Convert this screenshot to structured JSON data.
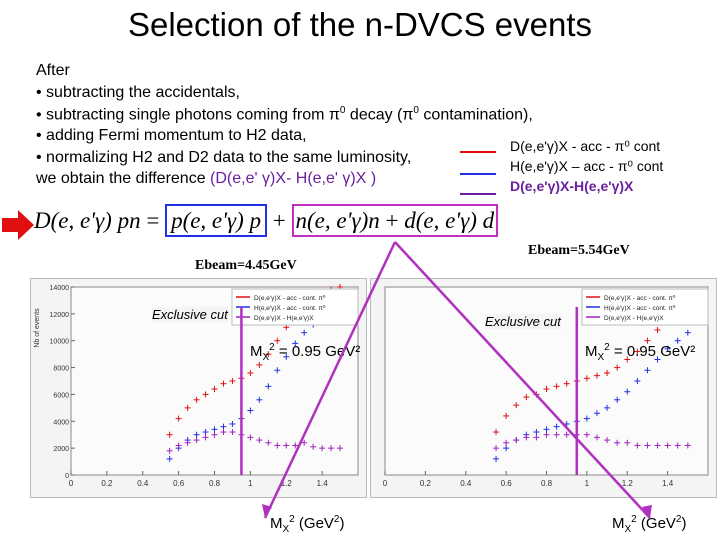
{
  "title": "Selection of the n-DVCS events",
  "body": {
    "after": "After",
    "bullet1": "• subtracting the accidentals,",
    "bullet2a": "• subtracting single photons coming from π",
    "bullet2b": "0",
    "bullet2c": " decay (π",
    "bullet2d": "0",
    "bullet2e": " contamination),",
    "bullet3": "• adding Fermi momentum to H2 data,",
    "bullet4": "• normalizing H2 and D2 data to the same luminosity,",
    "obtain": "we obtain the difference ",
    "obtain_highlight": "(D(e,e' γ)X- H(e,e' γ)X )"
  },
  "legend": {
    "item1": "D(e,e'γ)X - acc - π⁰ cont",
    "item2": "H(e,e'γ)X – acc - π⁰ cont",
    "item3": "D(e,e'γ)X-H(e,e'γ)X"
  },
  "formula": {
    "lhs": "D(e, e'γ) pn",
    "eq": " = ",
    "term1": "p(e, e'γ) p",
    "plus1": " + ",
    "term2": "n(e, e'γ)n",
    "plus2": " + ",
    "term3": "d(e, e'γ) d"
  },
  "plots": {
    "left": {
      "ebeam": "Ebeam=4.45GeV",
      "exclusive_cut": "Exclusive cut",
      "mx_label": "MX2 = 0.95 GeV²",
      "axis_title": "MX2 (GeV2)",
      "ylabel": "Nb of events",
      "legend1": "D(e,e'γ)X - acc - cont. π⁰",
      "legend2": "H(e,e'γ)X - acc - cont. π⁰",
      "legend3": "D(e,e'γ)X - H(e,e'γ)X"
    },
    "right": {
      "ebeam": "Ebeam=5.54GeV",
      "exclusive_cut": "Exclusive cut",
      "mx_label": "MX2 = 0.95 GeV²",
      "axis_title": "MX2 (GeV2)",
      "legend1": "D(e,e'γ)X - acc - cont. π⁰",
      "legend2": "H(e,e'γ)X - acc - cont. π⁰",
      "legend3": "D(e,e'γ)X - H(e,e'γ)X"
    }
  },
  "chart_data": [
    {
      "type": "scatter",
      "title": "Ebeam=4.45GeV",
      "xlabel": "MX2 (GeV2)",
      "ylabel": "Nb of events",
      "xlim": [
        0,
        1.6
      ],
      "ylim": [
        0,
        14000
      ],
      "x_ticks": [
        "0",
        "0.2",
        "0.4",
        "0.6",
        "0.8",
        "1",
        "1.2",
        "1.4"
      ],
      "y_ticks": [
        "0",
        "2000",
        "4000",
        "6000",
        "8000",
        "10000",
        "12000",
        "14000"
      ],
      "cut": 0.95,
      "series": [
        {
          "name": "D(e,e'γ)X - acc - cont. π⁰",
          "color": "#e01010",
          "x": [
            0.55,
            0.6,
            0.65,
            0.7,
            0.75,
            0.8,
            0.85,
            0.9,
            0.95,
            1.0,
            1.05,
            1.1,
            1.15,
            1.2,
            1.25,
            1.3,
            1.35,
            1.4,
            1.45,
            1.5
          ],
          "y": [
            3000,
            4200,
            5000,
            5600,
            6000,
            6400,
            6800,
            7000,
            7200,
            7600,
            8200,
            9000,
            10000,
            11000,
            12000,
            13000,
            13300,
            13600,
            13800,
            14000
          ]
        },
        {
          "name": "H(e,e'γ)X - acc - cont. π⁰",
          "color": "#2030e0",
          "x": [
            0.55,
            0.6,
            0.65,
            0.7,
            0.75,
            0.8,
            0.85,
            0.9,
            0.95,
            1.0,
            1.05,
            1.1,
            1.15,
            1.2,
            1.25,
            1.3,
            1.35,
            1.4,
            1.45,
            1.5
          ],
          "y": [
            1200,
            2000,
            2600,
            3000,
            3200,
            3400,
            3600,
            3800,
            4200,
            4800,
            5600,
            6600,
            7800,
            8800,
            9800,
            10600,
            11200,
            11600,
            11800,
            12000
          ]
        },
        {
          "name": "D(e,e'γ)X - H(e,e'γ)X",
          "color": "#a020c0",
          "x": [
            0.55,
            0.6,
            0.65,
            0.7,
            0.75,
            0.8,
            0.85,
            0.9,
            0.95,
            1.0,
            1.05,
            1.1,
            1.15,
            1.2,
            1.25,
            1.3,
            1.35,
            1.4,
            1.45,
            1.5
          ],
          "y": [
            1800,
            2200,
            2400,
            2600,
            2800,
            3000,
            3200,
            3200,
            3000,
            2800,
            2600,
            2400,
            2200,
            2200,
            2200,
            2400,
            2100,
            2000,
            2000,
            2000
          ]
        }
      ]
    },
    {
      "type": "scatter",
      "title": "Ebeam=5.54GeV",
      "xlabel": "MX2 (GeV2)",
      "ylabel": "",
      "xlim": [
        0,
        1.6
      ],
      "ylim": [
        0,
        14000
      ],
      "x_ticks": [
        "0",
        "0.2",
        "0.4",
        "0.6",
        "0.8",
        "1",
        "1.2",
        "1.4"
      ],
      "y_ticks": [],
      "cut": 0.95,
      "series": [
        {
          "name": "D(e,e'γ)X - acc - cont. π⁰",
          "color": "#e01010",
          "x": [
            0.55,
            0.6,
            0.65,
            0.7,
            0.75,
            0.8,
            0.85,
            0.9,
            0.95,
            1.0,
            1.05,
            1.1,
            1.15,
            1.2,
            1.25,
            1.3,
            1.35,
            1.4,
            1.45,
            1.5
          ],
          "y": [
            3200,
            4400,
            5200,
            5800,
            6000,
            6400,
            6600,
            6800,
            7000,
            7200,
            7400,
            7600,
            8000,
            8600,
            9200,
            10000,
            10800,
            11600,
            12200,
            12800
          ]
        },
        {
          "name": "H(e,e'γ)X - acc - cont. π⁰",
          "color": "#2030e0",
          "x": [
            0.55,
            0.6,
            0.65,
            0.7,
            0.75,
            0.8,
            0.85,
            0.9,
            0.95,
            1.0,
            1.05,
            1.1,
            1.15,
            1.2,
            1.25,
            1.3,
            1.35,
            1.4,
            1.45,
            1.5
          ],
          "y": [
            1200,
            2000,
            2600,
            3000,
            3200,
            3400,
            3600,
            3800,
            4000,
            4200,
            4600,
            5000,
            5600,
            6200,
            7000,
            7800,
            8600,
            9400,
            10000,
            10600
          ]
        },
        {
          "name": "D(e,e'γ)X - H(e,e'γ)X",
          "color": "#a020c0",
          "x": [
            0.55,
            0.6,
            0.65,
            0.7,
            0.75,
            0.8,
            0.85,
            0.9,
            0.95,
            1.0,
            1.05,
            1.1,
            1.15,
            1.2,
            1.25,
            1.3,
            1.35,
            1.4,
            1.45,
            1.5
          ],
          "y": [
            2000,
            2400,
            2600,
            2800,
            2800,
            3000,
            3000,
            3000,
            3000,
            3000,
            2800,
            2600,
            2400,
            2400,
            2200,
            2200,
            2200,
            2200,
            2200,
            2200
          ]
        }
      ]
    }
  ]
}
